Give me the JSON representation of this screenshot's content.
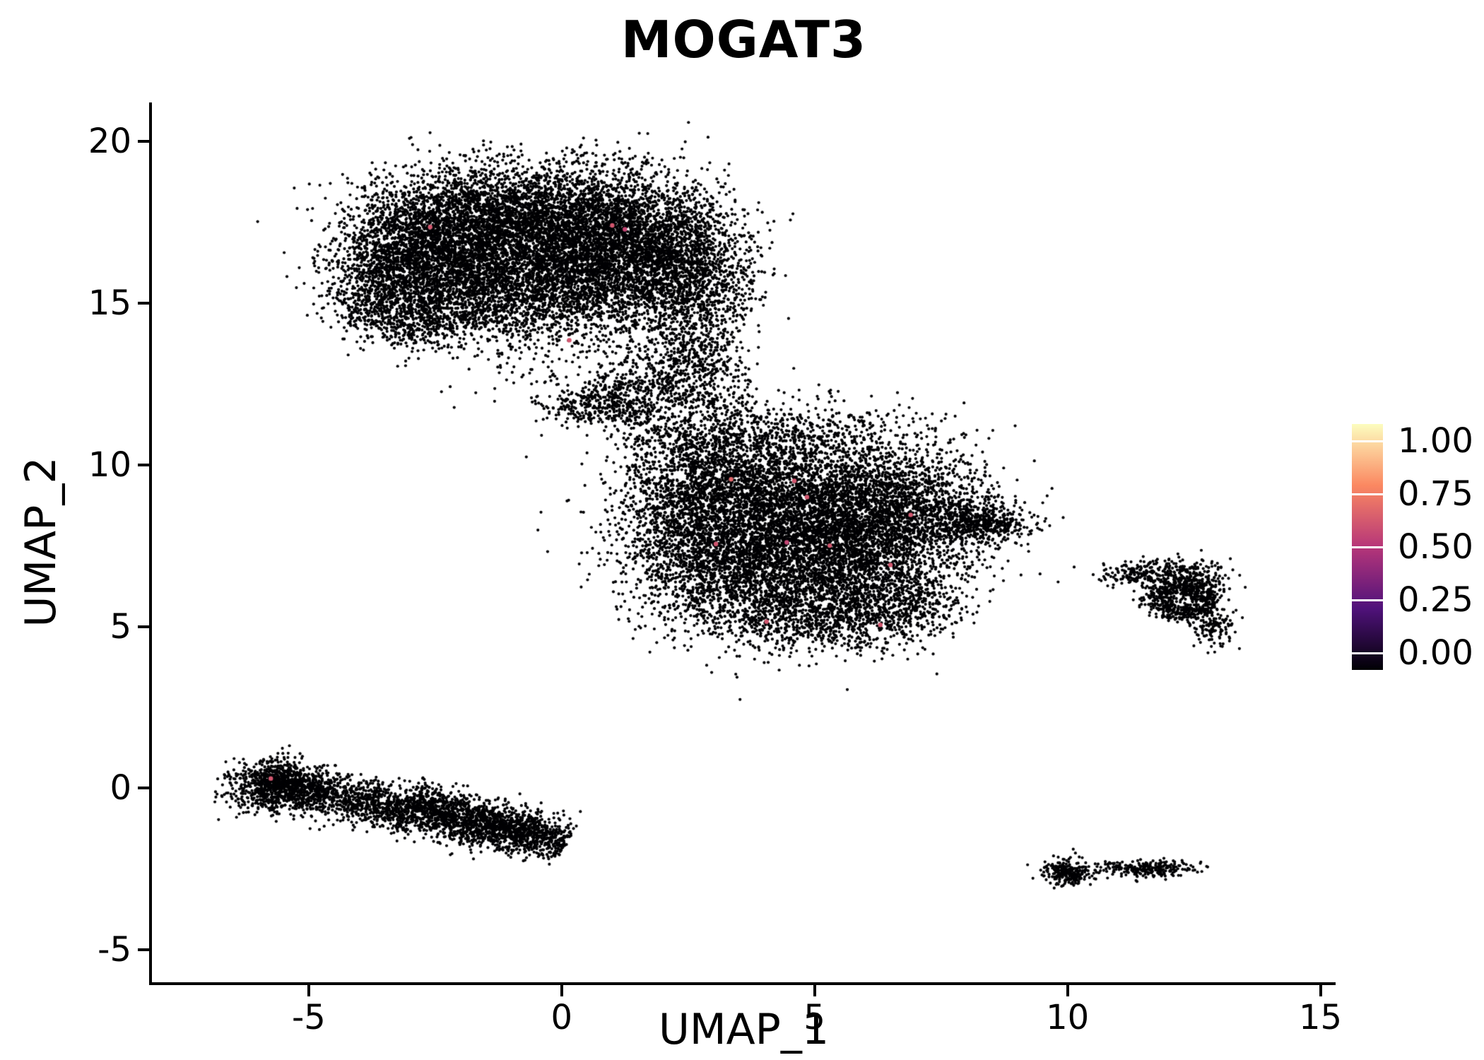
{
  "figure": {
    "background": "#ffffff"
  },
  "chart_data": {
    "type": "scatter",
    "title": "MOGAT3",
    "xlabel": "UMAP_1",
    "ylabel": "UMAP_2",
    "xlim": [
      -8.1,
      15.3
    ],
    "ylim": [
      -6.0,
      21.2
    ],
    "xticks": [
      -5,
      0,
      5,
      10,
      15
    ],
    "yticks": [
      -5,
      0,
      5,
      10,
      15,
      20
    ],
    "grid": false,
    "legend_position": "right",
    "point_color": "#000004",
    "point_radius_px": 2.1,
    "highlight_radius_px": 3.2,
    "colorbar": {
      "ticks": [
        {
          "value": 1.0,
          "label": "1.00"
        },
        {
          "value": 0.75,
          "label": "0.75"
        },
        {
          "value": 0.5,
          "label": "0.50"
        },
        {
          "value": 0.25,
          "label": "0.25"
        },
        {
          "value": 0.0,
          "label": "0.00"
        }
      ],
      "stops": [
        {
          "v": 0.0,
          "color": "#000004"
        },
        {
          "v": 0.25,
          "color": "#50127b"
        },
        {
          "v": 0.5,
          "color": "#b63679"
        },
        {
          "v": 0.75,
          "color": "#fb8861"
        },
        {
          "v": 1.0,
          "color": "#fcfdbf"
        }
      ]
    },
    "clusters": [
      {
        "type": "gauss",
        "cx": -2.3,
        "cy": 17.0,
        "sdx": 1.0,
        "sdy": 1.0,
        "n": 2600
      },
      {
        "type": "gauss",
        "cx": -0.6,
        "cy": 17.6,
        "sdx": 1.2,
        "sdy": 0.85,
        "n": 2600
      },
      {
        "type": "gauss",
        "cx": 1.1,
        "cy": 17.1,
        "sdx": 1.0,
        "sdy": 0.95,
        "n": 2200
      },
      {
        "type": "gauss",
        "cx": 2.3,
        "cy": 16.2,
        "sdx": 0.75,
        "sdy": 1.0,
        "n": 1300
      },
      {
        "type": "gauss",
        "cx": -1.6,
        "cy": 15.4,
        "sdx": 1.1,
        "sdy": 0.75,
        "n": 1600
      },
      {
        "type": "gauss",
        "cx": 0.4,
        "cy": 15.6,
        "sdx": 1.0,
        "sdy": 0.8,
        "n": 1400
      },
      {
        "type": "gauss",
        "cx": -3.4,
        "cy": 16.0,
        "sdx": 0.55,
        "sdy": 0.8,
        "n": 700
      },
      {
        "type": "gauss",
        "cx": -2.9,
        "cy": 14.4,
        "sdx": 0.5,
        "sdy": 0.45,
        "n": 350
      },
      {
        "type": "gauss",
        "cx": -4.0,
        "cy": 14.9,
        "sdx": 0.35,
        "sdy": 0.45,
        "n": 150
      },
      {
        "type": "gauss",
        "cx": 2.8,
        "cy": 14.8,
        "sdx": 0.5,
        "sdy": 0.9,
        "n": 450
      },
      {
        "type": "gauss",
        "cx": 2.4,
        "cy": 13.2,
        "sdx": 0.55,
        "sdy": 0.7,
        "n": 350
      },
      {
        "type": "gauss",
        "cx": 1.6,
        "cy": 12.3,
        "sdx": 0.7,
        "sdy": 0.45,
        "n": 350
      },
      {
        "type": "gauss",
        "cx": 0.7,
        "cy": 11.8,
        "sdx": 0.55,
        "sdy": 0.3,
        "n": 300
      },
      {
        "type": "gauss",
        "cx": 0.0,
        "cy": 13.6,
        "sdx": 1.1,
        "sdy": 0.9,
        "n": 220
      },
      {
        "type": "gauss",
        "cx": 3.1,
        "cy": 11.8,
        "sdx": 0.5,
        "sdy": 0.7,
        "n": 200
      },
      {
        "type": "gauss",
        "cx": 4.4,
        "cy": 8.6,
        "sdx": 1.4,
        "sdy": 1.2,
        "n": 3200
      },
      {
        "type": "gauss",
        "cx": 5.6,
        "cy": 7.2,
        "sdx": 1.2,
        "sdy": 1.0,
        "n": 2400
      },
      {
        "type": "gauss",
        "cx": 3.4,
        "cy": 6.7,
        "sdx": 1.0,
        "sdy": 1.0,
        "n": 1600
      },
      {
        "type": "gauss",
        "cx": 6.4,
        "cy": 9.0,
        "sdx": 1.0,
        "sdy": 0.85,
        "n": 1300
      },
      {
        "type": "gauss",
        "cx": 3.0,
        "cy": 9.7,
        "sdx": 0.9,
        "sdy": 0.8,
        "n": 1000
      },
      {
        "type": "gauss",
        "cx": 5.0,
        "cy": 5.3,
        "sdx": 1.1,
        "sdy": 0.6,
        "n": 800
      },
      {
        "type": "gauss",
        "cx": 7.7,
        "cy": 8.3,
        "sdx": 0.7,
        "sdy": 0.5,
        "n": 500
      },
      {
        "type": "gauss",
        "cx": 8.5,
        "cy": 8.15,
        "sdx": 0.4,
        "sdy": 0.22,
        "n": 220
      },
      {
        "type": "gauss",
        "cx": 4.6,
        "cy": 10.9,
        "sdx": 1.3,
        "sdy": 0.55,
        "n": 450
      },
      {
        "type": "gauss",
        "cx": 2.3,
        "cy": 8.2,
        "sdx": 0.6,
        "sdy": 0.9,
        "n": 500
      },
      {
        "type": "gauss",
        "cx": 6.7,
        "cy": 5.6,
        "sdx": 0.6,
        "sdy": 0.5,
        "n": 350
      },
      {
        "type": "gauss",
        "cx": 2.0,
        "cy": 10.9,
        "sdx": 0.5,
        "sdy": 0.4,
        "n": 150
      },
      {
        "type": "ring",
        "cx": 12.25,
        "cy": 5.8,
        "r": 0.5,
        "sd": 0.16,
        "squash": 0.85,
        "n": 550
      },
      {
        "type": "gauss",
        "cx": 12.0,
        "cy": 6.65,
        "sdx": 0.55,
        "sdy": 0.22,
        "n": 260
      },
      {
        "type": "gauss",
        "cx": 11.35,
        "cy": 6.6,
        "sdx": 0.3,
        "sdy": 0.15,
        "n": 70
      },
      {
        "type": "gauss",
        "cx": 12.9,
        "cy": 5.0,
        "sdx": 0.22,
        "sdy": 0.28,
        "n": 130
      },
      {
        "type": "gauss",
        "cx": 12.6,
        "cy": 6.3,
        "sdx": 0.3,
        "sdy": 0.25,
        "n": 150
      },
      {
        "type": "streak",
        "x1": -5.95,
        "y1": 0.25,
        "x2": 0.1,
        "y2": -1.75,
        "sd": 0.33,
        "n": 2600
      },
      {
        "type": "gauss",
        "cx": -5.7,
        "cy": 0.05,
        "sdx": 0.45,
        "sdy": 0.4,
        "n": 700
      },
      {
        "type": "streak",
        "x1": -3.0,
        "y1": -0.3,
        "x2": -0.5,
        "y2": -1.3,
        "sd": 0.3,
        "n": 600
      },
      {
        "type": "gauss",
        "cx": 10.0,
        "cy": -2.62,
        "sdx": 0.24,
        "sdy": 0.2,
        "n": 260
      },
      {
        "type": "gauss",
        "cx": 11.55,
        "cy": -2.5,
        "sdx": 0.5,
        "sdy": 0.13,
        "n": 260
      },
      {
        "type": "points",
        "pts": [
          [
            4.7,
            3.8
          ],
          [
            10.75,
            6.45
          ],
          [
            11.0,
            6.7
          ],
          [
            10.9,
            6.2
          ],
          [
            10.65,
            -2.55
          ],
          [
            11.05,
            -2.45
          ]
        ]
      }
    ],
    "expressing_cells": [
      {
        "x": -2.6,
        "y": 17.35,
        "value": 0.6
      },
      {
        "x": 1.0,
        "y": 17.4,
        "value": 0.6
      },
      {
        "x": 1.25,
        "y": 17.28,
        "value": 0.55
      },
      {
        "x": 0.15,
        "y": 13.85,
        "value": 0.6
      },
      {
        "x": 3.35,
        "y": 9.55,
        "value": 0.65
      },
      {
        "x": 4.6,
        "y": 9.5,
        "value": 0.6
      },
      {
        "x": 4.85,
        "y": 9.0,
        "value": 0.6
      },
      {
        "x": 6.9,
        "y": 8.45,
        "value": 0.6
      },
      {
        "x": 3.05,
        "y": 7.55,
        "value": 0.6
      },
      {
        "x": 4.45,
        "y": 7.6,
        "value": 0.55
      },
      {
        "x": 5.3,
        "y": 7.5,
        "value": 0.6
      },
      {
        "x": 6.5,
        "y": 6.9,
        "value": 0.6
      },
      {
        "x": 4.05,
        "y": 5.15,
        "value": 0.6
      },
      {
        "x": 6.3,
        "y": 5.05,
        "value": 0.6
      },
      {
        "x": -5.75,
        "y": 0.3,
        "value": 0.6
      }
    ]
  }
}
